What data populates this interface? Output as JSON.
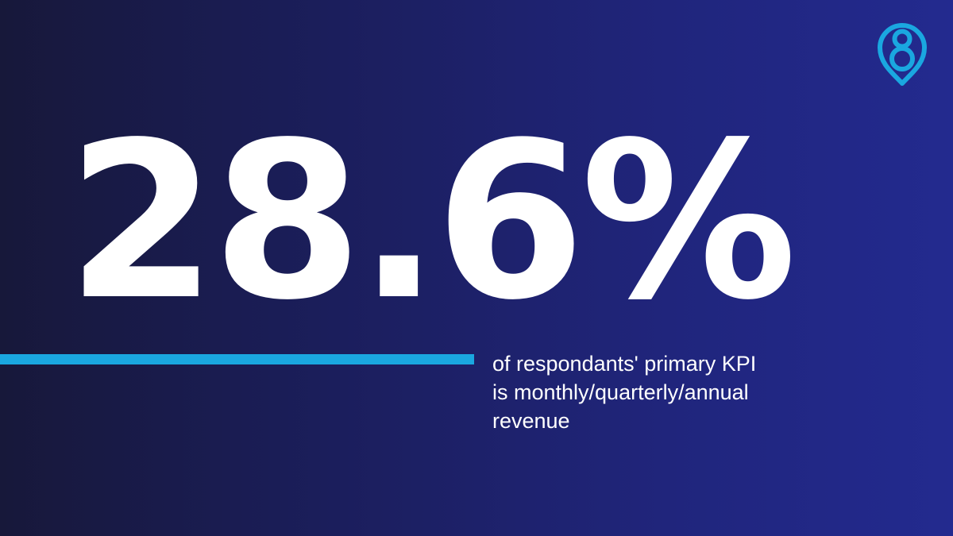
{
  "stat": {
    "value": "28.6%"
  },
  "caption": {
    "lines": [
      "of respondants' primary KPI",
      "is monthly/quarterly/annual",
      "revenue"
    ]
  },
  "logo": {
    "icon": "location-pin-figure-eight-icon"
  },
  "colors": {
    "accent": "#1aa7e0",
    "text": "#ffffff",
    "background_left": "#17183a",
    "background_right": "#232a8f"
  }
}
